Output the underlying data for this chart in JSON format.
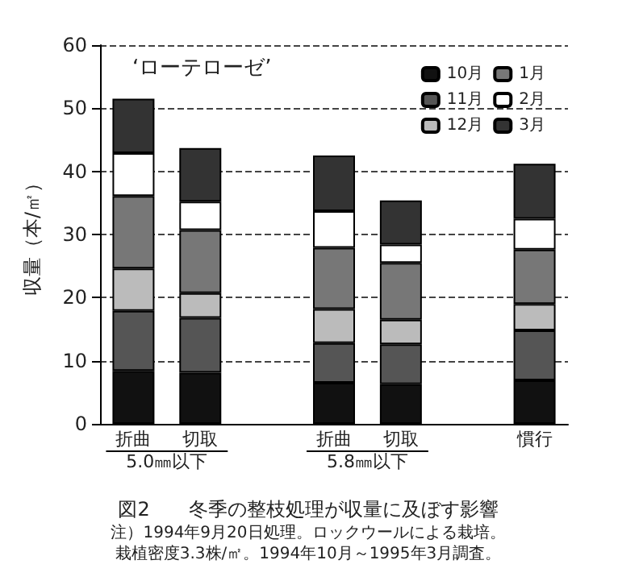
{
  "chart_data": {
    "type": "bar",
    "stacked": true,
    "title": "図2　　冬季の整枝処理が収量に及ぼす影響",
    "subtitle": "‘ローテローゼ’",
    "ylabel": "収量（本/㎡）",
    "categories": [
      "折曲",
      "切取",
      null,
      "折曲",
      "切取",
      null,
      "慣行"
    ],
    "series": [
      {
        "name": "10月",
        "color": "#111111",
        "values": [
          8.4,
          8.1,
          null,
          6.5,
          6.3,
          null,
          6.9
        ]
      },
      {
        "name": "11月",
        "color": "#555555",
        "values": [
          9.5,
          8.7,
          null,
          6.3,
          6.3,
          null,
          7.9
        ]
      },
      {
        "name": "12月",
        "color": "#bbbbbb",
        "values": [
          6.7,
          3.9,
          null,
          5.4,
          3.9,
          null,
          4.2
        ]
      },
      {
        "name": "1月",
        "color": "#777777",
        "values": [
          11.5,
          10.0,
          null,
          9.7,
          9.0,
          null,
          8.6
        ]
      },
      {
        "name": "2月",
        "color": "#ffffff",
        "values": [
          6.8,
          4.5,
          null,
          5.8,
          2.9,
          null,
          4.9
        ]
      },
      {
        "name": "3月",
        "color": "#333333",
        "values": [
          8.6,
          8.5,
          null,
          8.8,
          7.0,
          null,
          8.7
        ]
      }
    ],
    "ylim": [
      0,
      60
    ],
    "yticks": [
      0,
      10,
      20,
      30,
      40,
      50,
      60
    ],
    "grid": "y",
    "legend": "top right",
    "annotations": [
      "5.0㎜以下",
      "5.8㎜以下",
      "注）1994年9月20日処理。ロックウールによる栽培。",
      "栽植密度3.3株/㎡。1994年10月～1995年3月調査。"
    ]
  }
}
